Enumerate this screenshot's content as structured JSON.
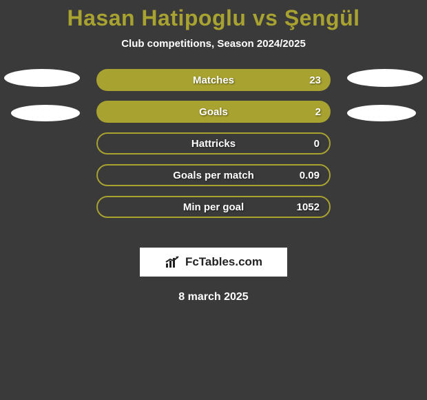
{
  "background_color": "#3a3a3a",
  "title": {
    "text": "Hasan Hatipoglu vs Şengül",
    "color": "#a8a230",
    "fontsize": 32
  },
  "subtitle": {
    "text": "Club competitions, Season 2024/2025",
    "color": "#ffffff",
    "fontsize": 15
  },
  "ellipses": {
    "fill": "#ffffff"
  },
  "stats": {
    "bar_color_filled": "#a8a230",
    "bar_color_empty_border": "#a8a230",
    "text_color": "#ffffff",
    "border_radius": 16,
    "rows": [
      {
        "label": "Matches",
        "value": "23",
        "filled": true
      },
      {
        "label": "Goals",
        "value": "2",
        "filled": true
      },
      {
        "label": "Hattricks",
        "value": "0",
        "filled": false
      },
      {
        "label": "Goals per match",
        "value": "0.09",
        "filled": false
      },
      {
        "label": "Min per goal",
        "value": "1052",
        "filled": false
      }
    ]
  },
  "brand": {
    "box_bg": "#ffffff",
    "box_border": "#3a3a3a",
    "text": "FcTables.com",
    "text_color": "#222222",
    "icon_color": "#222222"
  },
  "date": {
    "text": "8 march 2025",
    "color": "#ffffff"
  }
}
